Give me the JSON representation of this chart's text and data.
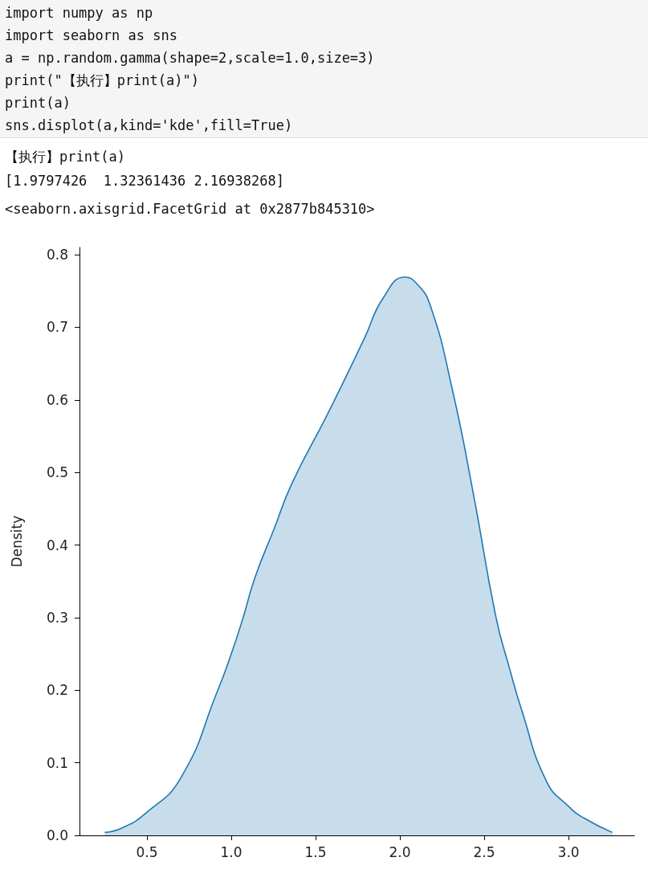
{
  "chart_data": {
    "type": "area",
    "ylabel": "Density",
    "annotations": [
      "import numpy as np",
      "import seaborn as sns",
      "a = np.random.gamma(shape=2,scale=1.0,size=3)",
      "print(\"【执行】print(a)\")",
      "print(a)",
      "sns.displot(a,kind='kde',fill=True)",
      "【执行】print(a)",
      "[1.9797426  1.32361436 2.16938268]",
      "<seaborn.axisgrid.FacetGrid at 0x2877b845310>"
    ],
    "x": [
      0.25,
      0.35,
      0.49,
      0.7,
      0.92,
      1.0,
      1.07,
      1.14,
      1.25,
      1.36,
      1.57,
      1.79,
      1.9,
      2.03,
      2.1,
      2.18,
      2.31,
      2.44,
      2.57,
      2.65,
      2.72,
      2.87,
      3.0,
      3.09,
      3.26
    ],
    "series": [
      {
        "color": "#1f77b4",
        "values": [
          0.004,
          0.01,
          0.03,
          0.079,
          0.2,
          0.25,
          0.3,
          0.355,
          0.42,
          0.485,
          0.58,
          0.685,
          0.74,
          0.769,
          0.76,
          0.73,
          0.615,
          0.465,
          0.3,
          0.23,
          0.174,
          0.074,
          0.04,
          0.024,
          0.004
        ]
      }
    ],
    "xlim": [
      0.1,
      3.39
    ],
    "ylim": [
      0,
      0.81
    ],
    "xticks": [
      0.5,
      {
        "value": 1,
        "label": "1.0"
      },
      1.5,
      {
        "value": 2,
        "label": "2.0"
      },
      2.5,
      {
        "value": 3,
        "label": "3.0"
      }
    ],
    "yticks": [
      {
        "value": 0,
        "label": "0.0"
      },
      0.1,
      0.2,
      0.3,
      0.4,
      0.5,
      0.6,
      0.7,
      0.8
    ],
    "grid": false
  }
}
